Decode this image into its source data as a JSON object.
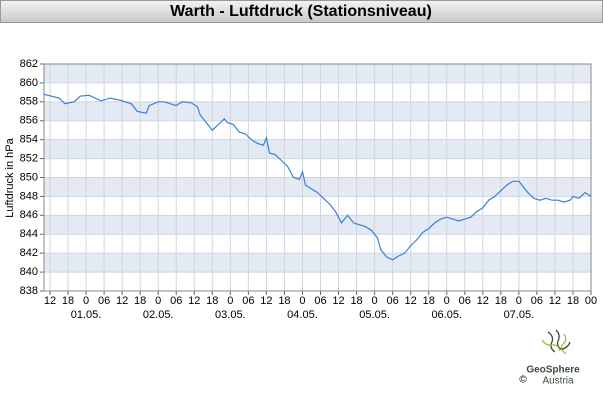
{
  "chart_data": {
    "type": "line",
    "title": "Warth - Luftdruck (Stationsniveau)",
    "ylabel": "Luftdruck in hPa",
    "xlim": [
      -14,
      168
    ],
    "ylim": [
      838,
      862
    ],
    "yticks": [
      838,
      840,
      842,
      844,
      846,
      848,
      850,
      852,
      854,
      856,
      858,
      860,
      862
    ],
    "xticks": [
      {
        "value": -12,
        "label": "12"
      },
      {
        "value": -6,
        "label": "18"
      },
      0,
      {
        "value": 6,
        "label": "06"
      },
      12,
      18,
      {
        "value": 24,
        "label": "0"
      },
      {
        "value": 30,
        "label": "06"
      },
      {
        "value": 36,
        "label": "12"
      },
      {
        "value": 42,
        "label": "18"
      },
      {
        "value": 48,
        "label": "0"
      },
      {
        "value": 54,
        "label": "06"
      },
      {
        "value": 60,
        "label": "12"
      },
      {
        "value": 66,
        "label": "18"
      },
      {
        "value": 72,
        "label": "0"
      },
      {
        "value": 78,
        "label": "06"
      },
      {
        "value": 84,
        "label": "12"
      },
      {
        "value": 90,
        "label": "18"
      },
      {
        "value": 96,
        "label": "0"
      },
      {
        "value": 102,
        "label": "06"
      },
      {
        "value": 108,
        "label": "12"
      },
      {
        "value": 114,
        "label": "18"
      },
      {
        "value": 120,
        "label": "0"
      },
      {
        "value": 126,
        "label": "06"
      },
      {
        "value": 132,
        "label": "12"
      },
      {
        "value": 138,
        "label": "18"
      },
      {
        "value": 144,
        "label": "0"
      },
      {
        "value": 150,
        "label": "06"
      },
      {
        "value": 156,
        "label": "12"
      },
      {
        "value": 162,
        "label": "18"
      },
      {
        "value": 168,
        "label": "00"
      }
    ],
    "date_labels": [
      {
        "value": 0,
        "label": "01.05."
      },
      {
        "value": 24,
        "label": "02.05."
      },
      {
        "value": 48,
        "label": "03.05."
      },
      {
        "value": 72,
        "label": "04.05."
      },
      {
        "value": 96,
        "label": "05.05."
      },
      {
        "value": 120,
        "label": "06.05."
      },
      {
        "value": 144,
        "label": "07.05."
      }
    ],
    "grid": true,
    "bands": [
      "#e4eaf3",
      "#ffffff"
    ],
    "x": [
      -14,
      -9,
      -7,
      -4,
      -2,
      1,
      5,
      8,
      11,
      15,
      17,
      20,
      21,
      24,
      26,
      30,
      32,
      35,
      37,
      38,
      40,
      42,
      44,
      46,
      47,
      49,
      51,
      53,
      55,
      57,
      59,
      60,
      61,
      63,
      65,
      67,
      69,
      71,
      72,
      73,
      75,
      77,
      79,
      81,
      83,
      85,
      87,
      89,
      91,
      93,
      95,
      97,
      98,
      100,
      102,
      104,
      106,
      108,
      110,
      112,
      114,
      116,
      118,
      120,
      122,
      124,
      126,
      128,
      130,
      132,
      134,
      136,
      138,
      140,
      142,
      144,
      145,
      147,
      149,
      151,
      153,
      155,
      157,
      159,
      161,
      162,
      164,
      166,
      168
    ],
    "series": [
      {
        "name": "Luftdruck",
        "color": "#3a7fd5",
        "values": [
          858.8,
          858.4,
          857.8,
          858.0,
          858.6,
          858.7,
          858.1,
          858.4,
          858.2,
          857.8,
          857.0,
          856.8,
          857.6,
          858.0,
          858.0,
          857.6,
          858.0,
          857.9,
          857.5,
          856.6,
          855.8,
          855.0,
          855.6,
          856.2,
          855.8,
          855.6,
          854.8,
          854.6,
          854.0,
          853.6,
          853.4,
          854.2,
          852.6,
          852.4,
          851.8,
          851.2,
          850.0,
          849.8,
          850.6,
          849.2,
          848.8,
          848.4,
          847.8,
          847.2,
          846.4,
          845.2,
          846.0,
          845.2,
          845.0,
          844.8,
          844.4,
          843.6,
          842.4,
          841.6,
          841.3,
          841.7,
          842.0,
          842.8,
          843.4,
          844.2,
          844.6,
          845.2,
          845.6,
          845.8,
          845.6,
          845.4,
          845.6,
          845.8,
          846.4,
          846.8,
          847.6,
          848.0,
          848.6,
          849.2,
          849.6,
          849.6,
          849.2,
          848.4,
          847.8,
          847.6,
          847.8,
          847.6,
          847.6,
          847.4,
          847.6,
          848.0,
          847.8,
          848.4,
          848.0
        ]
      }
    ]
  },
  "logo": {
    "name": "GeoSphere",
    "sub": "Austria",
    "copyright": "©"
  }
}
